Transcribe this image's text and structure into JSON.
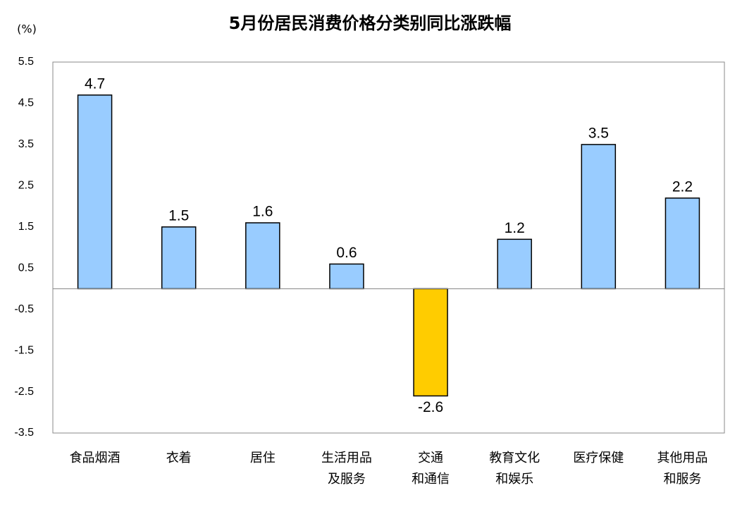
{
  "chart_data": {
    "type": "bar",
    "title": "5月份居民消费价格分类别同比涨跌幅",
    "y_label": "(%)",
    "categories": [
      [
        "食品烟酒"
      ],
      [
        "衣着"
      ],
      [
        "居住"
      ],
      [
        "生活用品",
        "及服务"
      ],
      [
        "交通",
        "和通信"
      ],
      [
        "教育文化",
        "和娱乐"
      ],
      [
        "医疗保健"
      ],
      [
        "其他用品",
        "和服务"
      ]
    ],
    "values": [
      4.7,
      1.5,
      1.6,
      0.6,
      -2.6,
      1.2,
      3.5,
      2.2
    ],
    "color": "#99ccff",
    "negative_color": "#ffcc00",
    "ylim": [
      -3.5,
      5.5
    ],
    "yticks": [
      -3.5,
      -2.5,
      -1.5,
      -0.5,
      0.5,
      1.5,
      2.5,
      3.5,
      4.5,
      5.5
    ],
    "grid": false
  }
}
